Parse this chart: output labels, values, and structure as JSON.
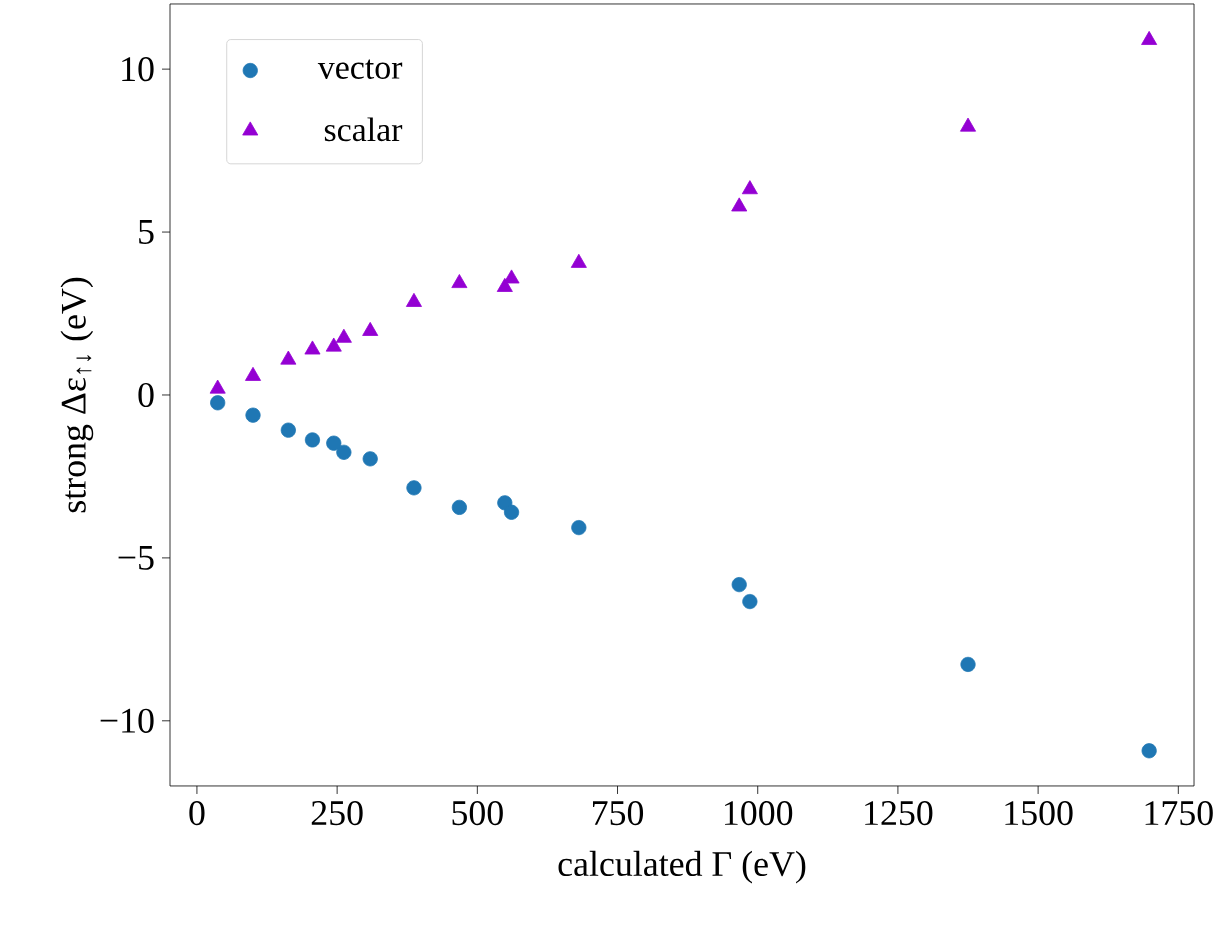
{
  "chart_data": {
    "type": "scatter",
    "xlabel": "calculated Γ (eV)",
    "ylabel": "strong Δε$_{↑↓}$ (eV)",
    "x": [
      37,
      100,
      163,
      206,
      244,
      262,
      309,
      387,
      468,
      549,
      561,
      681,
      967,
      986,
      1375,
      1698
    ],
    "series": [
      {
        "name": "vector",
        "color": "#1f77b4",
        "marker": "circle",
        "values": [
          -0.24,
          -0.62,
          -1.08,
          -1.38,
          -1.48,
          -1.76,
          -1.96,
          -2.85,
          -3.45,
          -3.31,
          -3.6,
          -4.07,
          -5.82,
          -6.34,
          -8.27,
          -10.92
        ]
      },
      {
        "name": "scalar",
        "color": "#9400d3",
        "marker": "triangle",
        "values": [
          0.19,
          0.58,
          1.08,
          1.39,
          1.48,
          1.75,
          1.96,
          2.85,
          3.43,
          3.31,
          3.57,
          4.05,
          5.78,
          6.31,
          8.23,
          10.89
        ]
      }
    ],
    "xlim": [
      -48,
      1778
    ],
    "ylim": [
      -12,
      12
    ],
    "xticks": [
      0,
      250,
      500,
      750,
      1000,
      1250,
      1500,
      1750
    ],
    "yticks": [
      {
        "value": -10,
        "label": "−10"
      },
      {
        "value": -5,
        "label": "−5"
      },
      0,
      5,
      10
    ],
    "legend": "top left"
  }
}
